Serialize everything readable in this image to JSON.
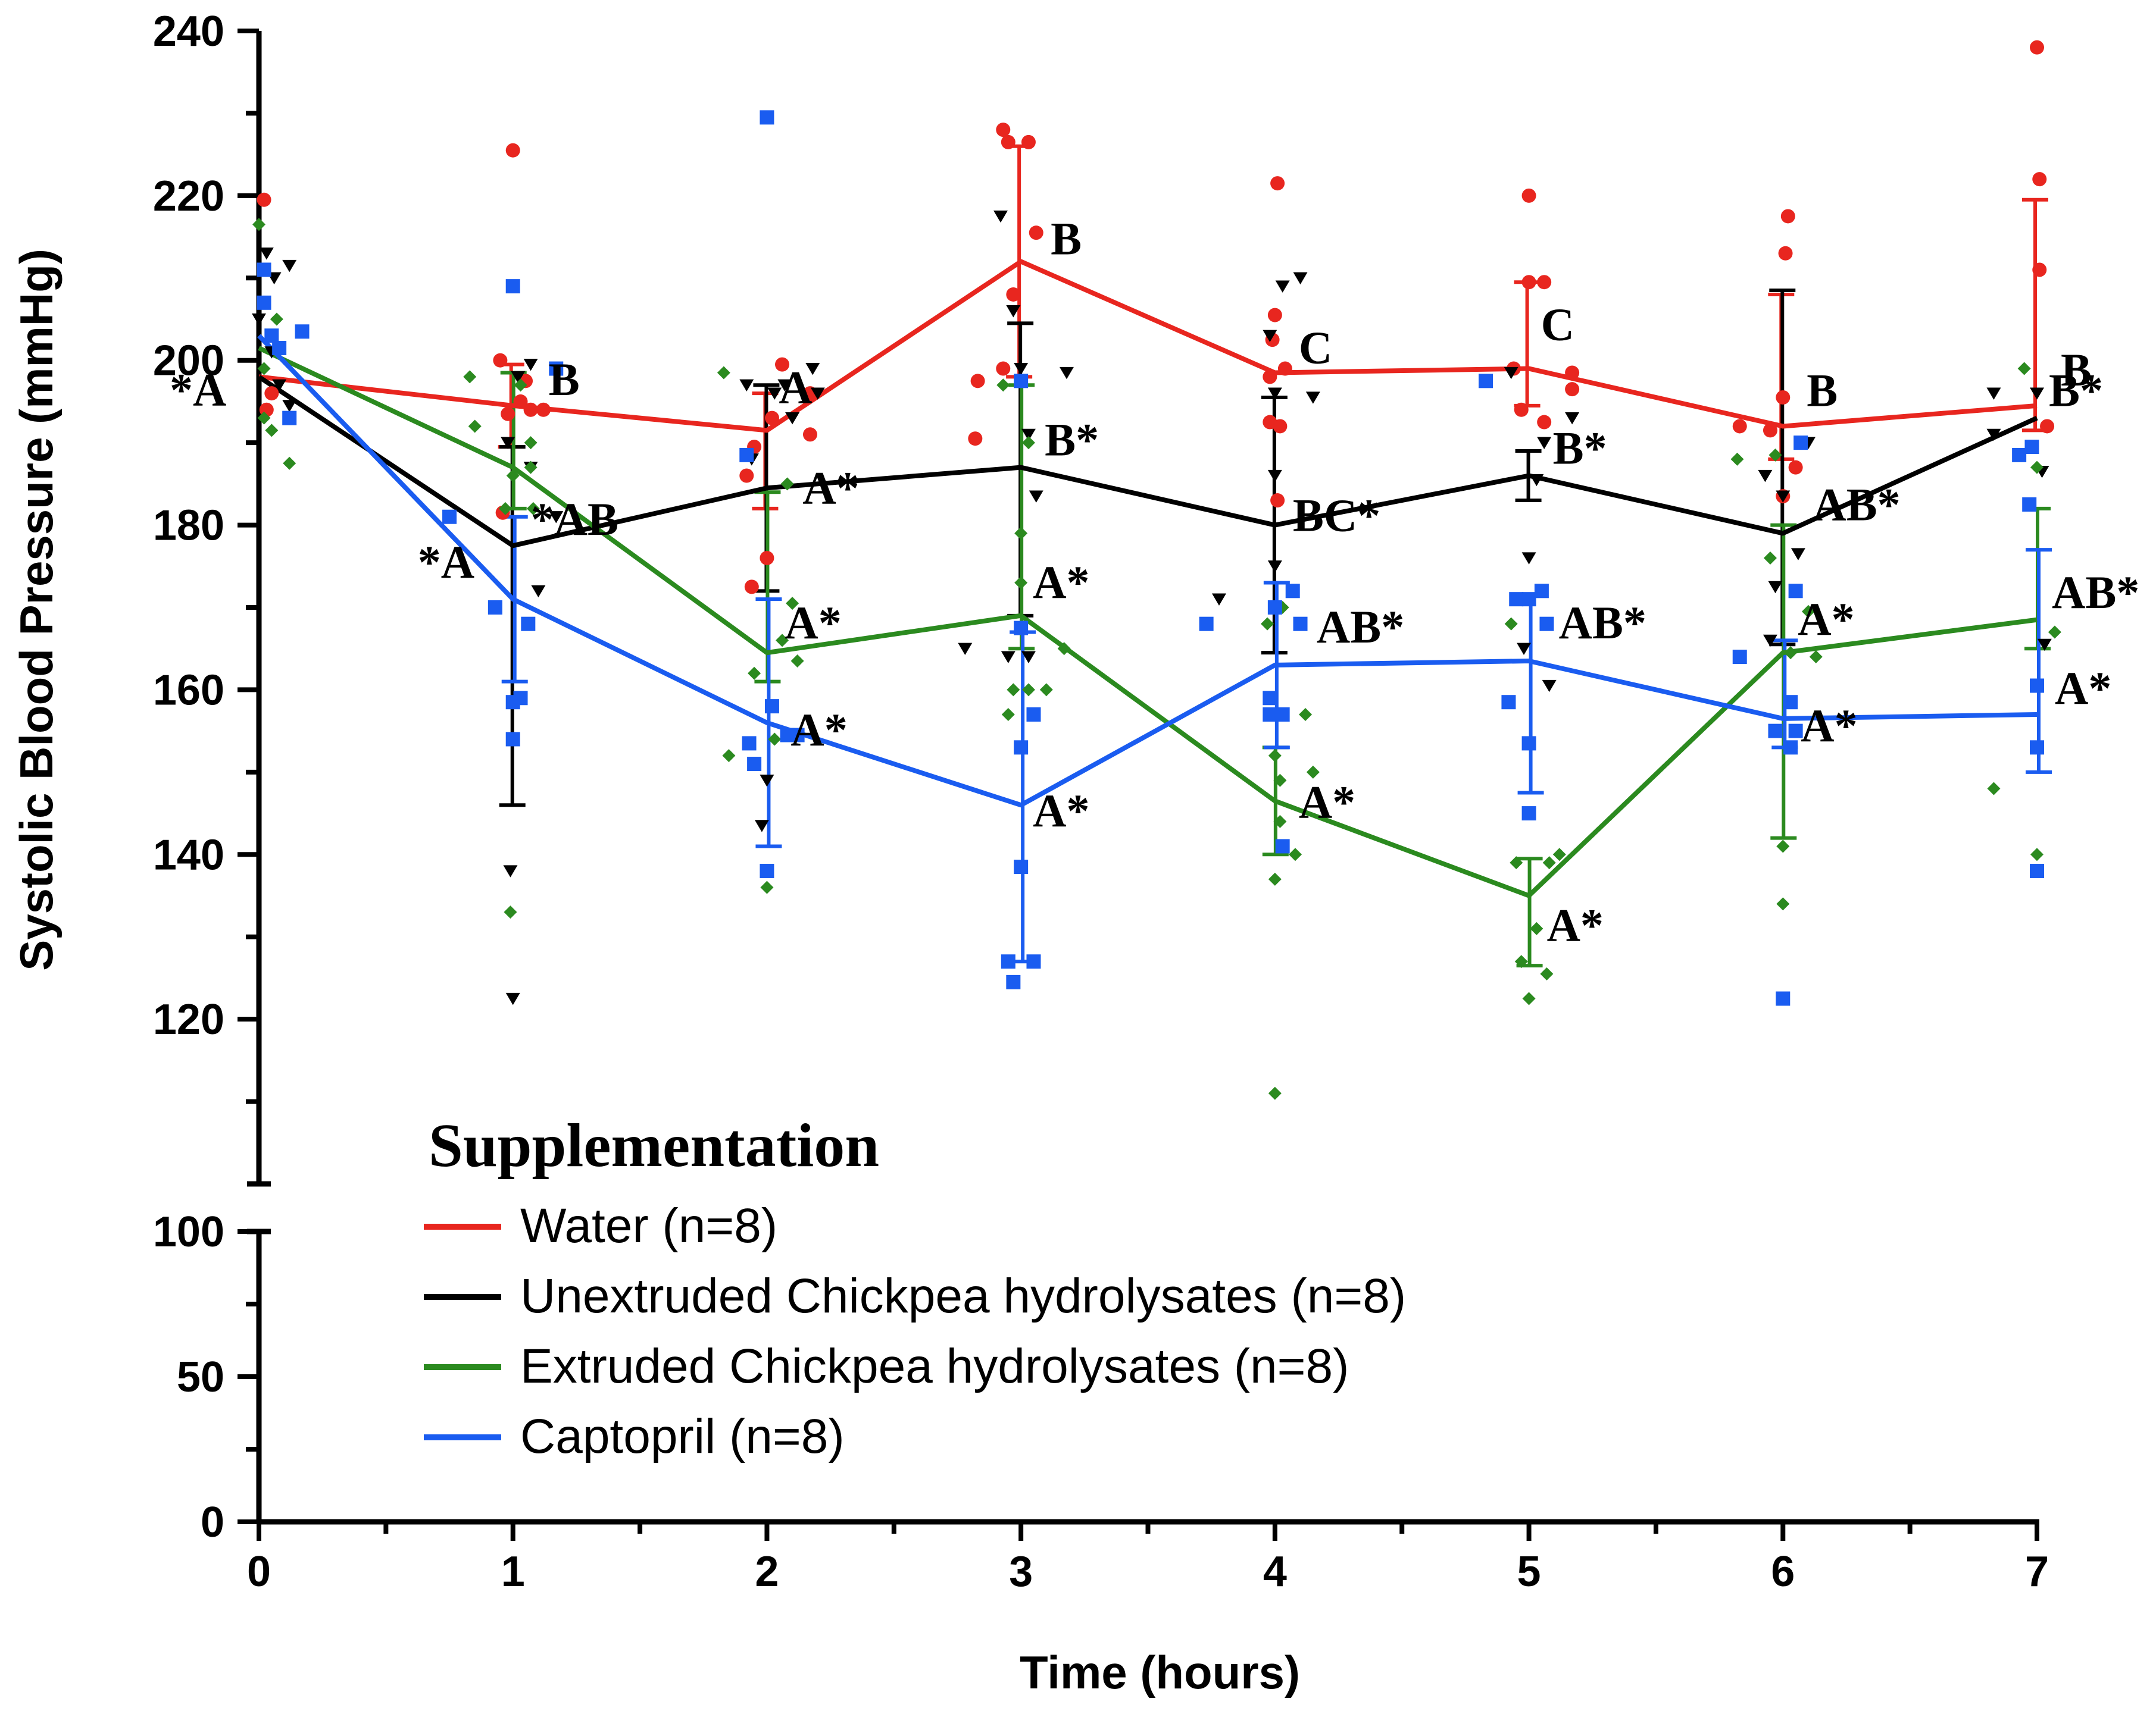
{
  "chart_data": {
    "type": "line",
    "title": "",
    "xlabel": "Time (hours)",
    "ylabel": "Systolic Blood Pressure (mmHg)",
    "x": [
      0,
      1,
      2,
      3,
      4,
      5,
      6,
      7
    ],
    "x_ticks": [
      "0",
      "1",
      "2",
      "3",
      "4",
      "5",
      "6",
      "7"
    ],
    "xlim": [
      0,
      7
    ],
    "y_segments": [
      {
        "range": [
          0,
          100
        ],
        "ticks": [
          "0",
          "50",
          "100"
        ],
        "tick_values": [
          0,
          50,
          100
        ]
      },
      {
        "range": [
          100,
          240
        ],
        "ticks": [
          "120",
          "140",
          "160",
          "180",
          "200",
          "220",
          "240"
        ],
        "tick_values": [
          120,
          140,
          160,
          180,
          200,
          220,
          240
        ]
      }
    ],
    "legend": {
      "title": "Supplementation",
      "position": "lower-left",
      "entries": [
        "Water (n=8)",
        "Unextruded Chickpea hydrolysates (n=8)",
        "Extruded Chickpea hydrolysates (n=8)",
        "Captopril (n=8)"
      ]
    },
    "series": [
      {
        "name": "Water (n=8)",
        "color": "#e8261f",
        "marker": "circle",
        "values": [
          198,
          194.5,
          191.5,
          212,
          198.5,
          199,
          192,
          194.5
        ],
        "err_upper": [
          null,
          199.5,
          196,
          226,
          null,
          209.5,
          208,
          219.5
        ],
        "err_lower": [
          null,
          189.5,
          182,
          198,
          null,
          194.5,
          188,
          191.5
        ],
        "labels": [
          "",
          "B",
          "A",
          "B",
          "C",
          "C",
          "B",
          "B"
        ],
        "points": [
          [
            0.02,
            219.5
          ],
          [
            0.05,
            196
          ],
          [
            0.03,
            194
          ],
          [
            0.95,
            200
          ],
          [
            0.96,
            181.5
          ],
          [
            0.98,
            193.5
          ],
          [
            1.0,
            225.5
          ],
          [
            1.03,
            195
          ],
          [
            1.05,
            197.5
          ],
          [
            1.07,
            194
          ],
          [
            1.12,
            194
          ],
          [
            1.92,
            186
          ],
          [
            1.94,
            172.5
          ],
          [
            1.95,
            189.5
          ],
          [
            2.0,
            176
          ],
          [
            2.02,
            193
          ],
          [
            2.06,
            199.5
          ],
          [
            2.17,
            196
          ],
          [
            2.17,
            191
          ],
          [
            2.83,
            197.5
          ],
          [
            2.82,
            190.5
          ],
          [
            2.93,
            199
          ],
          [
            2.93,
            228
          ],
          [
            2.95,
            226.5
          ],
          [
            2.97,
            208
          ],
          [
            3.03,
            226.5
          ],
          [
            3.06,
            215.5
          ],
          [
            3.98,
            192.5
          ],
          [
            3.98,
            198
          ],
          [
            3.99,
            202.5
          ],
          [
            4.0,
            205.5
          ],
          [
            4.01,
            221.5
          ],
          [
            4.01,
            183
          ],
          [
            4.02,
            192
          ],
          [
            4.04,
            199
          ],
          [
            4.94,
            199
          ],
          [
            4.97,
            194
          ],
          [
            5.0,
            209.5
          ],
          [
            5.06,
            192.5
          ],
          [
            5.06,
            209.5
          ],
          [
            5.0,
            220
          ],
          [
            5.17,
            196.5
          ],
          [
            5.17,
            198.5
          ],
          [
            5.83,
            192
          ],
          [
            5.95,
            191.5
          ],
          [
            6.0,
            183.5
          ],
          [
            6.0,
            195.5
          ],
          [
            6.01,
            213
          ],
          [
            6.02,
            217.5
          ],
          [
            6.05,
            187
          ],
          [
            7.0,
            238
          ],
          [
            7.01,
            222
          ],
          [
            7.01,
            211
          ],
          [
            7.04,
            192
          ]
        ]
      },
      {
        "name": "Unextruded Chickpea hydrolysates (n=8)",
        "color": "#000000",
        "marker": "triangle-down",
        "values": [
          198,
          177.5,
          184.5,
          187,
          180,
          186,
          179,
          193
        ],
        "err_upper": [
          null,
          189.5,
          197,
          204.5,
          195.5,
          189,
          208.5,
          null
        ],
        "err_lower": [
          null,
          146,
          172,
          169,
          164.5,
          183,
          165.5,
          null
        ],
        "labels": [
          "*A",
          "*AB",
          "A*",
          "B*",
          "BC*",
          "B*",
          "AB*",
          "B*"
        ],
        "points": [
          [
            0.03,
            213
          ],
          [
            0.06,
            210
          ],
          [
            0.12,
            211.5
          ],
          [
            0.0,
            205
          ],
          [
            0.05,
            201
          ],
          [
            0.08,
            197
          ],
          [
            0.12,
            194.5
          ],
          [
            0.98,
            190
          ],
          [
            0.99,
            138
          ],
          [
            1.0,
            122.5
          ],
          [
            1.02,
            198
          ],
          [
            1.07,
            199.5
          ],
          [
            1.07,
            187
          ],
          [
            1.1,
            172
          ],
          [
            1.17,
            181
          ],
          [
            1.92,
            197
          ],
          [
            1.94,
            188
          ],
          [
            1.98,
            143.5
          ],
          [
            2.0,
            149
          ],
          [
            2.03,
            196
          ],
          [
            2.07,
            197
          ],
          [
            2.1,
            193
          ],
          [
            2.18,
            199
          ],
          [
            2.2,
            196
          ],
          [
            2.78,
            165
          ],
          [
            2.92,
            217.5
          ],
          [
            2.95,
            164
          ],
          [
            2.97,
            206
          ],
          [
            3.0,
            199
          ],
          [
            3.03,
            164
          ],
          [
            3.03,
            191
          ],
          [
            3.06,
            183.5
          ],
          [
            3.18,
            198.5
          ],
          [
            3.78,
            171
          ],
          [
            3.98,
            203
          ],
          [
            4.0,
            196
          ],
          [
            4.0,
            186
          ],
          [
            4.0,
            175
          ],
          [
            4.03,
            209
          ],
          [
            4.1,
            210
          ],
          [
            4.15,
            195.5
          ],
          [
            4.93,
            198.5
          ],
          [
            4.98,
            165
          ],
          [
            5.0,
            176
          ],
          [
            5.03,
            185.5
          ],
          [
            5.06,
            190
          ],
          [
            5.08,
            160.5
          ],
          [
            5.17,
            193
          ],
          [
            5.93,
            186
          ],
          [
            5.95,
            166
          ],
          [
            5.97,
            172.5
          ],
          [
            6.0,
            183.5
          ],
          [
            6.06,
            176.5
          ],
          [
            6.1,
            190
          ],
          [
            6.83,
            196
          ],
          [
            6.83,
            191
          ],
          [
            7.0,
            196
          ],
          [
            7.02,
            186.5
          ],
          [
            7.03,
            165.5
          ]
        ]
      },
      {
        "name": "Extruded Chickpea hydrolysates (n=8)",
        "color": "#2b8a1f",
        "marker": "diamond",
        "values": [
          201.5,
          187,
          164.5,
          169,
          146.5,
          135,
          164.5,
          168.5
        ],
        "err_upper": [
          null,
          198.5,
          184,
          197,
          153,
          139.5,
          180,
          182
        ],
        "err_lower": [
          null,
          182,
          161,
          165,
          140,
          126.5,
          142,
          165
        ],
        "labels": [
          "",
          "",
          "A*",
          "A*",
          "A*",
          "A*",
          "A*",
          "AB*"
        ],
        "points": [
          [
            0.0,
            216.5
          ],
          [
            0.02,
            199
          ],
          [
            0.02,
            193
          ],
          [
            0.05,
            191.5
          ],
          [
            0.07,
            205
          ],
          [
            0.12,
            187.5
          ],
          [
            0.83,
            198
          ],
          [
            0.85,
            192
          ],
          [
            0.97,
            182
          ],
          [
            0.99,
            133
          ],
          [
            1.0,
            186
          ],
          [
            1.03,
            197
          ],
          [
            1.07,
            190
          ],
          [
            1.08,
            182
          ],
          [
            1.07,
            187
          ],
          [
            1.83,
            198.5
          ],
          [
            1.85,
            152
          ],
          [
            1.95,
            162
          ],
          [
            2.0,
            136
          ],
          [
            2.03,
            154
          ],
          [
            2.06,
            166
          ],
          [
            2.08,
            185
          ],
          [
            2.1,
            170.5
          ],
          [
            2.12,
            163.5
          ],
          [
            2.93,
            197
          ],
          [
            2.95,
            157
          ],
          [
            2.97,
            160
          ],
          [
            3.0,
            179
          ],
          [
            3.0,
            173
          ],
          [
            3.03,
            160
          ],
          [
            3.03,
            190
          ],
          [
            3.1,
            160
          ],
          [
            3.17,
            165
          ],
          [
            3.97,
            168
          ],
          [
            4.0,
            152
          ],
          [
            4.0,
            137
          ],
          [
            4.0,
            111
          ],
          [
            4.02,
            144
          ],
          [
            4.02,
            149
          ],
          [
            4.03,
            170
          ],
          [
            4.08,
            140
          ],
          [
            4.12,
            157
          ],
          [
            4.15,
            150
          ],
          [
            4.93,
            168
          ],
          [
            4.95,
            139
          ],
          [
            4.97,
            127
          ],
          [
            5.03,
            131
          ],
          [
            5.0,
            122.5
          ],
          [
            5.07,
            125.5
          ],
          [
            5.08,
            139
          ],
          [
            5.12,
            140
          ],
          [
            5.82,
            188
          ],
          [
            5.95,
            176
          ],
          [
            5.97,
            188.5
          ],
          [
            6.0,
            134
          ],
          [
            6.0,
            141
          ],
          [
            6.03,
            164.5
          ],
          [
            6.1,
            169.5
          ],
          [
            6.13,
            164
          ],
          [
            6.83,
            148
          ],
          [
            6.95,
            199
          ],
          [
            7.0,
            140
          ],
          [
            7.0,
            187
          ],
          [
            7.07,
            167
          ]
        ]
      },
      {
        "name": "Captopril (n=8)",
        "color": "#1a5cf0",
        "marker": "square",
        "values": [
          203,
          171,
          156,
          146,
          163,
          163.5,
          156.5,
          157
        ],
        "err_upper": [
          null,
          181,
          171,
          167,
          173,
          171.5,
          166,
          177
        ],
        "err_lower": [
          null,
          161,
          141,
          127,
          153,
          147.5,
          153,
          150
        ],
        "labels": [
          "",
          "*A",
          "A*",
          "A*",
          "AB*",
          "AB*",
          "A*",
          "A*"
        ],
        "points": [
          [
            0.02,
            207
          ],
          [
            0.02,
            211
          ],
          [
            0.05,
            203
          ],
          [
            0.12,
            193
          ],
          [
            0.17,
            203.5
          ],
          [
            0.08,
            201.5
          ],
          [
            0.75,
            181
          ],
          [
            0.93,
            170
          ],
          [
            1.0,
            209
          ],
          [
            1.0,
            158.5
          ],
          [
            1.0,
            154
          ],
          [
            1.03,
            159
          ],
          [
            1.06,
            168
          ],
          [
            1.17,
            199
          ],
          [
            1.92,
            188.5
          ],
          [
            1.93,
            153.5
          ],
          [
            1.95,
            151
          ],
          [
            2.0,
            229.5
          ],
          [
            2.02,
            158
          ],
          [
            2.0,
            138
          ],
          [
            2.08,
            154.5
          ],
          [
            2.12,
            154.5
          ],
          [
            2.95,
            127
          ],
          [
            2.97,
            124.5
          ],
          [
            3.0,
            197.5
          ],
          [
            3.0,
            153
          ],
          [
            3.0,
            138.5
          ],
          [
            3.0,
            167.5
          ],
          [
            3.05,
            157
          ],
          [
            3.05,
            127
          ],
          [
            3.73,
            168
          ],
          [
            3.98,
            157
          ],
          [
            3.98,
            159
          ],
          [
            4.0,
            170
          ],
          [
            4.03,
            141
          ],
          [
            4.03,
            157
          ],
          [
            4.07,
            172
          ],
          [
            4.1,
            168
          ],
          [
            4.83,
            197.5
          ],
          [
            4.92,
            158.5
          ],
          [
            4.95,
            171
          ],
          [
            5.0,
            153.5
          ],
          [
            5.0,
            145
          ],
          [
            5.0,
            171
          ],
          [
            5.05,
            172
          ],
          [
            5.07,
            168
          ],
          [
            5.83,
            164
          ],
          [
            5.97,
            155
          ],
          [
            6.0,
            122.5
          ],
          [
            6.03,
            153
          ],
          [
            6.03,
            158.5
          ],
          [
            6.05,
            155
          ],
          [
            6.05,
            172
          ],
          [
            6.07,
            190
          ],
          [
            6.93,
            188.5
          ],
          [
            6.97,
            182.5
          ],
          [
            7.0,
            153
          ],
          [
            7.0,
            138
          ],
          [
            7.0,
            160.5
          ],
          [
            6.98,
            189.5
          ]
        ]
      }
    ]
  }
}
